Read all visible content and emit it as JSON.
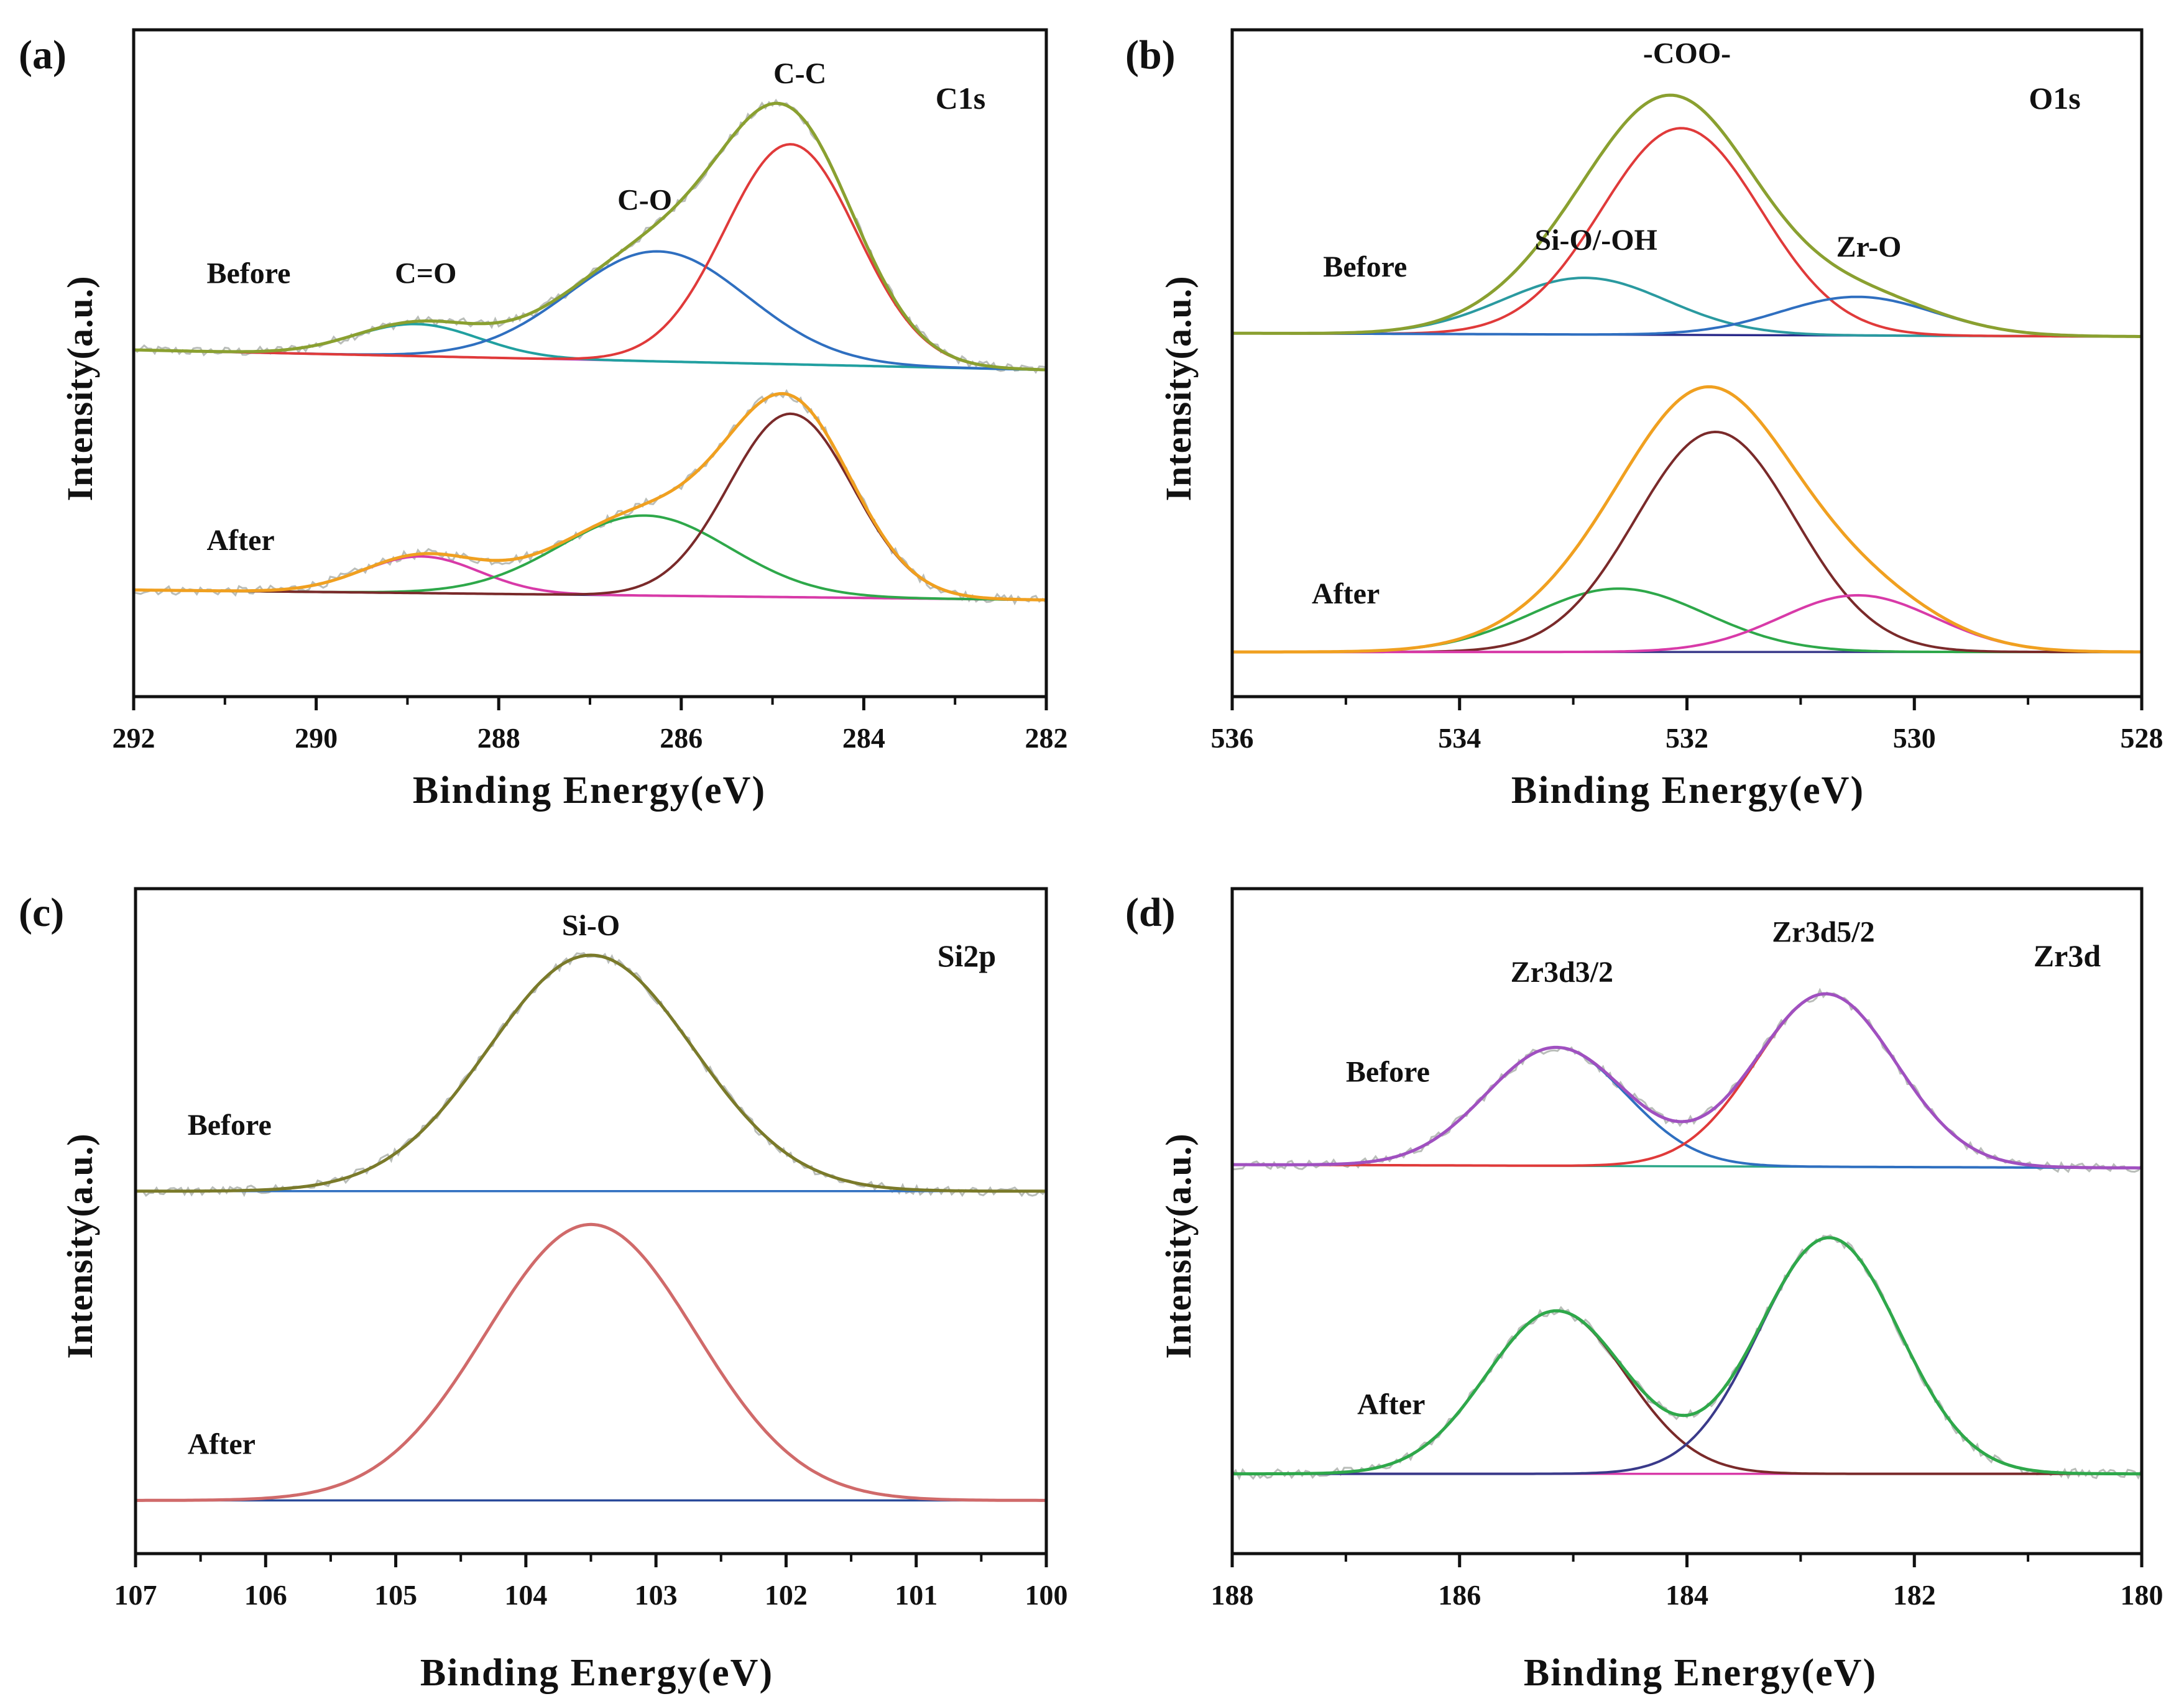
{
  "chart_data": [
    {
      "type": "line",
      "panel": "(a)",
      "spectrum": "C1s",
      "xlabel": "Binding Energy(eV)",
      "ylabel": "Intensity(a.u.)",
      "xlim": [
        292,
        282
      ],
      "xticks": [
        292,
        290,
        288,
        286,
        284,
        282
      ],
      "ylim": [
        0,
        1
      ],
      "state_labels": [
        {
          "text": "Before",
          "x": 291.2,
          "y": 0.62
        },
        {
          "text": "After",
          "x": 291.2,
          "y": 0.22
        }
      ],
      "peak_labels": [
        {
          "text": "C=O",
          "x": 288.8,
          "y": 0.62
        },
        {
          "text": "C-O",
          "x": 286.4,
          "y": 0.73
        },
        {
          "text": "C-C",
          "x": 284.7,
          "y": 0.92
        }
      ],
      "groups": [
        {
          "name": "Before",
          "baseline": [
            0.52,
            0.49
          ],
          "noise": true,
          "peaks": [
            {
              "label": "C=O",
              "center": 288.9,
              "height": 0.048,
              "fwhm": 1.6,
              "color": "#21a0a0"
            },
            {
              "label": "C-O",
              "center": 286.25,
              "height": 0.165,
              "fwhm": 2.3,
              "color": "#2f6fc0"
            },
            {
              "label": "C-C",
              "center": 284.8,
              "height": 0.33,
              "fwhm": 1.7,
              "color": "#e03a3a"
            }
          ],
          "envelope_color": "#8aa030",
          "baseline_color": "#c050c0"
        },
        {
          "name": "After",
          "baseline": [
            0.16,
            0.145
          ],
          "noise": true,
          "peaks": [
            {
              "label": "C=O",
              "center": 288.85,
              "height": 0.055,
              "fwhm": 1.5,
              "color": "#d83aa8"
            },
            {
              "label": "C-O",
              "center": 286.4,
              "height": 0.12,
              "fwhm": 2.2,
              "color": "#2ea84a"
            },
            {
              "label": "C-C",
              "center": 284.8,
              "height": 0.275,
              "fwhm": 1.6,
              "color": "#7a2a2a"
            }
          ],
          "envelope_color": "#f0a020",
          "baseline_color": "#3a3a8a"
        }
      ]
    },
    {
      "type": "line",
      "panel": "(b)",
      "spectrum": "O1s",
      "xlabel": "Binding Energy(eV)",
      "ylabel": "Intensity(a.u.)",
      "xlim": [
        536,
        528
      ],
      "xticks": [
        536,
        534,
        532,
        530,
        528
      ],
      "ylim": [
        0,
        1
      ],
      "state_labels": [
        {
          "text": "Before",
          "x": 535.2,
          "y": 0.63
        },
        {
          "text": "After",
          "x": 535.3,
          "y": 0.14
        }
      ],
      "peak_labels": [
        {
          "text": "-COO-",
          "x": 532.0,
          "y": 0.95
        },
        {
          "text": "Si-O/-OH",
          "x": 532.8,
          "y": 0.67
        },
        {
          "text": "Zr-O",
          "x": 530.4,
          "y": 0.66
        }
      ],
      "groups": [
        {
          "name": "Before",
          "baseline": [
            0.545,
            0.54
          ],
          "noise": false,
          "peaks": [
            {
              "label": "Si-O/-OH",
              "center": 532.9,
              "height": 0.085,
              "fwhm": 1.7,
              "color": "#2a9aa0"
            },
            {
              "label": "-COO-",
              "center": 532.05,
              "height": 0.31,
              "fwhm": 1.65,
              "color": "#e03a3a"
            },
            {
              "label": "Zr-O",
              "center": 530.5,
              "height": 0.058,
              "fwhm": 1.6,
              "color": "#2f6fc0"
            }
          ],
          "envelope_color": "#8aa030",
          "baseline_color": "#2a2a8a"
        },
        {
          "name": "After",
          "baseline": [
            0.067,
            0.067
          ],
          "noise": false,
          "peaks": [
            {
              "label": "Si-O/-OH",
              "center": 532.6,
              "height": 0.095,
              "fwhm": 1.8,
              "color": "#2ea84a"
            },
            {
              "label": "-COO-",
              "center": 531.75,
              "height": 0.33,
              "fwhm": 1.65,
              "color": "#7a2a2a"
            },
            {
              "label": "Zr-O",
              "center": 530.5,
              "height": 0.085,
              "fwhm": 1.6,
              "color": "#d83aa8"
            }
          ],
          "envelope_color": "#f0a020",
          "baseline_color": "#3a3a8a"
        }
      ]
    },
    {
      "type": "line",
      "panel": "(c)",
      "spectrum": "Si2p",
      "xlabel": "Binding Energy(eV)",
      "ylabel": "Intensity(a.u.)",
      "xlim": [
        107,
        100
      ],
      "xticks": [
        107,
        106,
        105,
        104,
        103,
        102,
        101,
        100
      ],
      "ylim": [
        0,
        1
      ],
      "state_labels": [
        {
          "text": "Before",
          "x": 106.6,
          "y": 0.63
        },
        {
          "text": "After",
          "x": 106.6,
          "y": 0.15
        }
      ],
      "peak_labels": [
        {
          "text": "Si-O",
          "x": 103.5,
          "y": 0.93
        }
      ],
      "groups": [
        {
          "name": "Before",
          "baseline": [
            0.545,
            0.545
          ],
          "noise": true,
          "peaks": [
            {
              "label": "Si-O",
              "center": 103.5,
              "height": 0.355,
              "fwhm": 1.85,
              "color": "#3a8a8a"
            }
          ],
          "envelope_color": "#7a7a2a",
          "baseline_color": "#2f6fc0"
        },
        {
          "name": "After",
          "baseline": [
            0.08,
            0.08
          ],
          "noise": false,
          "peaks": [
            {
              "label": "Si-O",
              "center": 103.5,
              "height": 0.415,
              "fwhm": 1.9,
              "color": "#7a2a2a"
            }
          ],
          "envelope_color": "#d06a6a",
          "baseline_color": "#2a4a9a"
        }
      ]
    },
    {
      "type": "line",
      "panel": "(d)",
      "spectrum": "Zr3d",
      "xlabel": "Binding Energy(eV)",
      "ylabel": "Intensity(a.u.)",
      "xlim": [
        188,
        180
      ],
      "xticks": [
        188,
        186,
        184,
        182,
        180
      ],
      "ylim": [
        0,
        1
      ],
      "state_labels": [
        {
          "text": "Before",
          "x": 187.0,
          "y": 0.71
        },
        {
          "text": "After",
          "x": 186.9,
          "y": 0.21
        }
      ],
      "peak_labels": [
        {
          "text": "Zr3d3/2",
          "x": 185.1,
          "y": 0.86
        },
        {
          "text": "Zr3d5/2",
          "x": 182.8,
          "y": 0.92
        }
      ],
      "groups": [
        {
          "name": "Before",
          "baseline": [
            0.585,
            0.58
          ],
          "noise": true,
          "peaks": [
            {
              "label": "Zr3d3/2",
              "center": 185.15,
              "height": 0.178,
              "fwhm": 1.45,
              "color": "#2f6fc0"
            },
            {
              "label": "Zr3d5/2",
              "center": 182.78,
              "height": 0.26,
              "fwhm": 1.45,
              "color": "#e03a3a"
            }
          ],
          "envelope_color": "#a050c0",
          "baseline_color": "#2ea88a"
        },
        {
          "name": "After",
          "baseline": [
            0.12,
            0.12
          ],
          "noise": true,
          "peaks": [
            {
              "label": "Zr3d3/2",
              "center": 185.15,
              "height": 0.245,
              "fwhm": 1.45,
              "color": "#7a2a2a"
            },
            {
              "label": "Zr3d5/2",
              "center": 182.75,
              "height": 0.355,
              "fwhm": 1.45,
              "color": "#3a3a8a"
            }
          ],
          "envelope_color": "#2ea84a",
          "baseline_color": "#d83aa8"
        }
      ]
    }
  ]
}
